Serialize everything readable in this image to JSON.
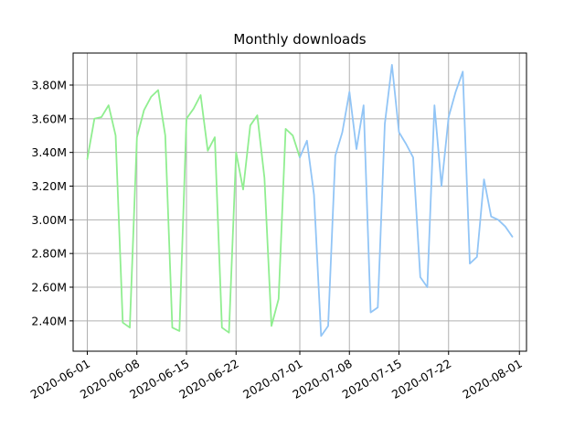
{
  "chart_data": {
    "type": "line",
    "title": "Monthly downloads",
    "xlabel": "",
    "ylabel": "",
    "x_start": "2020-06-01",
    "x_end": "2020-07-31",
    "xlim": [
      "2020-05-30",
      "2020-08-02"
    ],
    "ylim": [
      2.22,
      3.99
    ],
    "y_unit_suffix": "M",
    "x_ticks": [
      "2020-06-01",
      "2020-06-08",
      "2020-06-15",
      "2020-06-22",
      "2020-07-01",
      "2020-07-08",
      "2020-07-15",
      "2020-07-22",
      "2020-08-01"
    ],
    "y_ticks": [
      2.4,
      2.6,
      2.8,
      3.0,
      3.2,
      3.4,
      3.6,
      3.8
    ],
    "y_tick_labels": [
      "2.40M",
      "2.60M",
      "2.80M",
      "3.00M",
      "3.20M",
      "3.40M",
      "3.60M",
      "3.80M"
    ],
    "grid": true,
    "legend": "none",
    "series": [
      {
        "color": "#90ee90",
        "x": [
          "2020-06-01",
          "2020-06-02",
          "2020-06-03",
          "2020-06-04",
          "2020-06-05",
          "2020-06-06",
          "2020-06-07",
          "2020-06-08",
          "2020-06-09",
          "2020-06-10",
          "2020-06-11",
          "2020-06-12",
          "2020-06-13",
          "2020-06-14",
          "2020-06-15",
          "2020-06-16",
          "2020-06-17",
          "2020-06-18",
          "2020-06-19",
          "2020-06-20",
          "2020-06-21",
          "2020-06-22",
          "2020-06-23",
          "2020-06-24",
          "2020-06-25",
          "2020-06-26",
          "2020-06-27",
          "2020-06-28",
          "2020-06-29",
          "2020-06-30",
          "2020-07-01"
        ],
        "y": [
          3.36,
          3.6,
          3.61,
          3.68,
          3.5,
          2.39,
          2.36,
          3.49,
          3.65,
          3.73,
          3.77,
          3.5,
          2.36,
          2.34,
          3.6,
          3.66,
          3.74,
          3.41,
          3.49,
          2.36,
          2.33,
          3.4,
          3.18,
          3.56,
          3.62,
          3.25,
          2.37,
          2.53,
          3.54,
          3.5,
          3.37
        ]
      },
      {
        "color": "#92c5f6",
        "x": [
          "2020-07-01",
          "2020-07-02",
          "2020-07-03",
          "2020-07-04",
          "2020-07-05",
          "2020-07-06",
          "2020-07-07",
          "2020-07-08",
          "2020-07-09",
          "2020-07-10",
          "2020-07-11",
          "2020-07-12",
          "2020-07-13",
          "2020-07-14",
          "2020-07-15",
          "2020-07-16",
          "2020-07-17",
          "2020-07-18",
          "2020-07-19",
          "2020-07-20",
          "2020-07-21",
          "2020-07-22",
          "2020-07-23",
          "2020-07-24",
          "2020-07-25",
          "2020-07-26",
          "2020-07-27",
          "2020-07-28",
          "2020-07-29",
          "2020-07-30",
          "2020-07-31"
        ],
        "y": [
          3.37,
          3.47,
          3.15,
          2.31,
          2.37,
          3.38,
          3.52,
          3.76,
          3.42,
          3.68,
          2.45,
          2.48,
          3.57,
          3.92,
          3.52,
          3.45,
          3.37,
          2.66,
          2.6,
          3.68,
          3.2,
          3.61,
          3.76,
          3.88,
          2.74,
          2.78,
          3.24,
          3.02,
          3.0,
          2.96,
          2.9
        ]
      }
    ]
  }
}
